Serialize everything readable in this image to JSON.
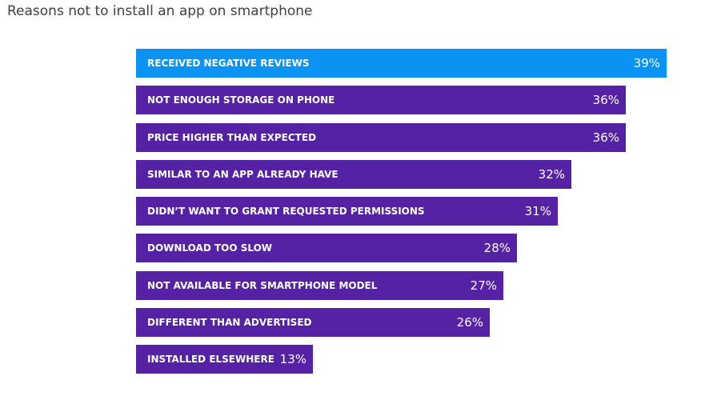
{
  "chart_data": {
    "type": "bar",
    "orientation": "horizontal",
    "title": "Reasons not to install an app on smartphone",
    "categories": [
      "RECEIVED NEGATIVE REVIEWS",
      "NOT ENOUGH STORAGE ON PHONE",
      "PRICE HIGHER THAN EXPECTED",
      "SIMILAR TO AN APP ALREADY HAVE",
      "DIDN’T WANT TO GRANT REQUESTED PERMISSIONS",
      "DOWNLOAD TOO SLOW",
      "NOT AVAILABLE FOR SMARTPHONE MODEL",
      "DIFFERENT THAN ADVERTISED",
      "INSTALLED ELSEWHERE"
    ],
    "values": [
      39,
      36,
      36,
      32,
      31,
      28,
      27,
      26,
      13
    ],
    "value_labels": [
      "39%",
      "36%",
      "36%",
      "32%",
      "31%",
      "28%",
      "27%",
      "26%",
      "13%"
    ],
    "unit": "%",
    "xlim": [
      0,
      39
    ],
    "highlight_index": 0,
    "colors": {
      "highlight": "#0A93F2",
      "default": "#5521A5",
      "label_text": "#FFFFFF",
      "title_text": "#404040"
    },
    "grid": false,
    "legend": "none"
  }
}
